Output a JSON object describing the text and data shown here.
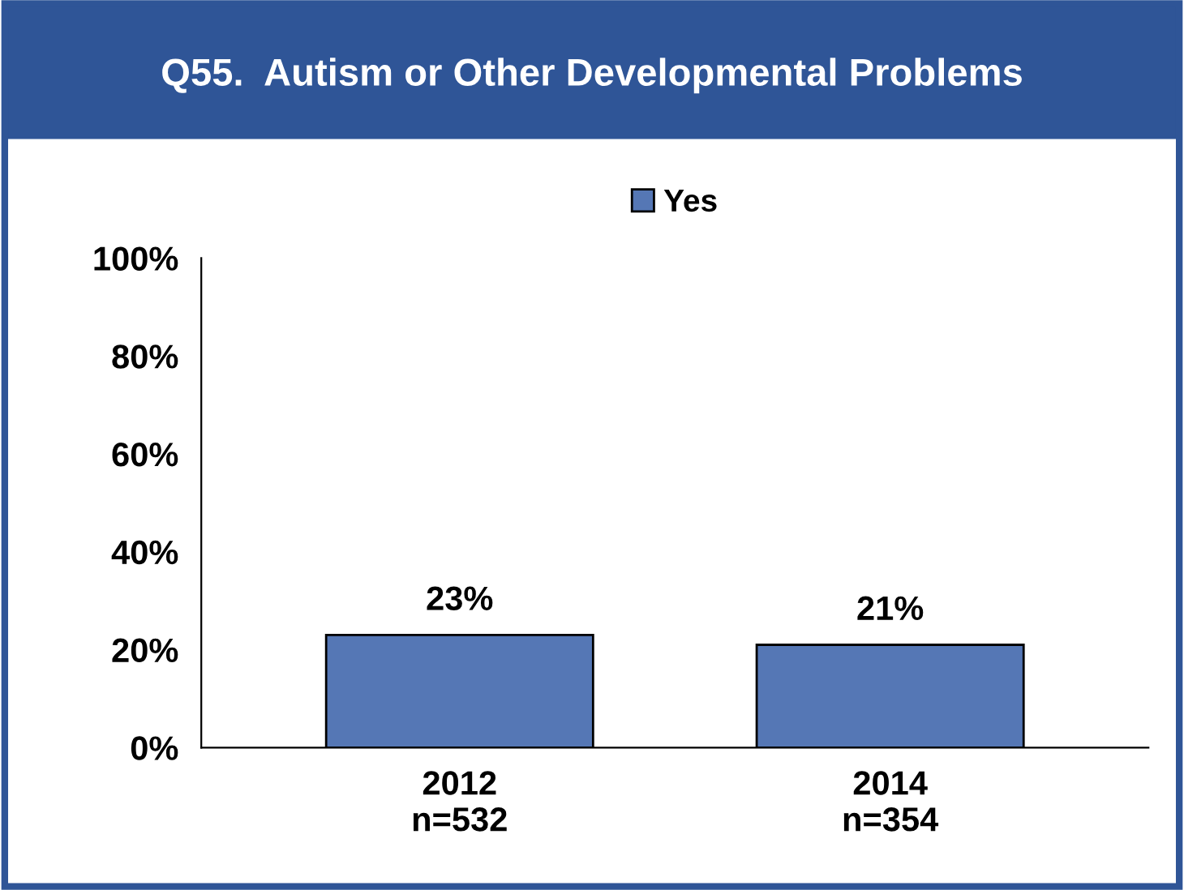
{
  "chart_data": {
    "type": "bar",
    "title": "Q55.  Autism or Other Developmental Problems",
    "categories": [
      "2012\nn=532",
      "2014\nn=354"
    ],
    "series": [
      {
        "name": "Yes",
        "color": "#5577b5",
        "values": [
          23,
          21
        ],
        "value_labels": [
          "23%",
          "21%"
        ]
      }
    ],
    "ylim": [
      0,
      100
    ],
    "yticks": [
      {
        "value": 0,
        "label": "0%"
      },
      {
        "value": 20,
        "label": "20%"
      },
      {
        "value": 40,
        "label": "40%"
      },
      {
        "value": 60,
        "label": "60%"
      },
      {
        "value": 80,
        "label": "80%"
      },
      {
        "value": 100,
        "label": "100%"
      }
    ],
    "grid": false,
    "legend": "top"
  }
}
